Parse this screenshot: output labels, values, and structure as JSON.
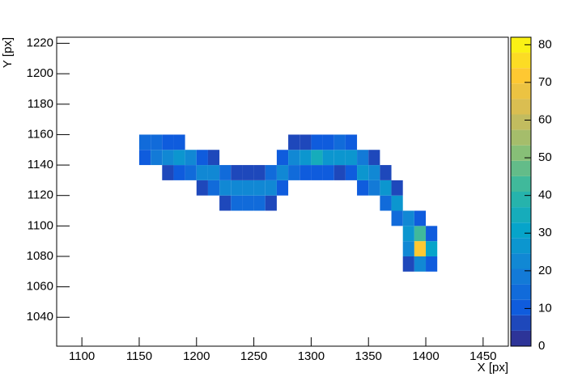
{
  "chart_data": {
    "type": "heatmap",
    "xlabel": "X [px]",
    "ylabel": "Y [px]",
    "xlim": [
      1078,
      1472
    ],
    "ylim": [
      1021,
      1224
    ],
    "zlim": [
      0,
      82
    ],
    "xticks": [
      1100,
      1150,
      1200,
      1250,
      1300,
      1350,
      1400,
      1450
    ],
    "yticks": [
      1040,
      1060,
      1080,
      1100,
      1120,
      1140,
      1160,
      1180,
      1200,
      1220
    ],
    "zticks": [
      0,
      10,
      20,
      30,
      40,
      50,
      60,
      70,
      80
    ],
    "xbin": 10,
    "ybin": 10,
    "contours": 20,
    "palette": [
      "#352a87",
      "#0f5cdd",
      "#1481d6",
      "#06a4ca",
      "#2eb7a4",
      "#87bf77",
      "#d1bb59",
      "#fec832",
      "#f9fb0e"
    ],
    "cells": [
      [
        1150,
        1140,
        12
      ],
      [
        1150,
        1150,
        15
      ],
      [
        1160,
        1140,
        18
      ],
      [
        1160,
        1150,
        14
      ],
      [
        1170,
        1130,
        8
      ],
      [
        1170,
        1140,
        22
      ],
      [
        1170,
        1150,
        12
      ],
      [
        1180,
        1130,
        10
      ],
      [
        1180,
        1140,
        28
      ],
      [
        1180,
        1150,
        10
      ],
      [
        1190,
        1130,
        14
      ],
      [
        1190,
        1140,
        22
      ],
      [
        1200,
        1120,
        8
      ],
      [
        1200,
        1130,
        22
      ],
      [
        1200,
        1140,
        12
      ],
      [
        1210,
        1120,
        14
      ],
      [
        1210,
        1130,
        24
      ],
      [
        1210,
        1140,
        6
      ],
      [
        1220,
        1110,
        8
      ],
      [
        1220,
        1120,
        22
      ],
      [
        1220,
        1130,
        14
      ],
      [
        1230,
        1110,
        14
      ],
      [
        1230,
        1120,
        24
      ],
      [
        1230,
        1130,
        8
      ],
      [
        1240,
        1110,
        16
      ],
      [
        1240,
        1120,
        22
      ],
      [
        1240,
        1130,
        5
      ],
      [
        1250,
        1110,
        14
      ],
      [
        1250,
        1120,
        24
      ],
      [
        1250,
        1130,
        8
      ],
      [
        1260,
        1110,
        8
      ],
      [
        1260,
        1120,
        22
      ],
      [
        1260,
        1130,
        14
      ],
      [
        1270,
        1120,
        10
      ],
      [
        1270,
        1130,
        24
      ],
      [
        1270,
        1140,
        10
      ],
      [
        1280,
        1130,
        16
      ],
      [
        1280,
        1140,
        24
      ],
      [
        1280,
        1150,
        6
      ],
      [
        1290,
        1130,
        12
      ],
      [
        1290,
        1140,
        28
      ],
      [
        1290,
        1150,
        8
      ],
      [
        1300,
        1130,
        10
      ],
      [
        1300,
        1140,
        36
      ],
      [
        1300,
        1150,
        10
      ],
      [
        1310,
        1130,
        10
      ],
      [
        1310,
        1140,
        28
      ],
      [
        1310,
        1150,
        12
      ],
      [
        1320,
        1130,
        8
      ],
      [
        1320,
        1140,
        26
      ],
      [
        1320,
        1150,
        14
      ],
      [
        1330,
        1130,
        10
      ],
      [
        1330,
        1140,
        28
      ],
      [
        1330,
        1150,
        12
      ],
      [
        1340,
        1120,
        10
      ],
      [
        1340,
        1130,
        26
      ],
      [
        1340,
        1140,
        18
      ],
      [
        1350,
        1120,
        20
      ],
      [
        1350,
        1130,
        24
      ],
      [
        1350,
        1140,
        6
      ],
      [
        1360,
        1110,
        14
      ],
      [
        1360,
        1120,
        26
      ],
      [
        1360,
        1130,
        8
      ],
      [
        1370,
        1100,
        16
      ],
      [
        1370,
        1110,
        26
      ],
      [
        1370,
        1120,
        6
      ],
      [
        1380,
        1070,
        8
      ],
      [
        1380,
        1080,
        24
      ],
      [
        1380,
        1090,
        28
      ],
      [
        1380,
        1100,
        22
      ],
      [
        1390,
        1070,
        22
      ],
      [
        1390,
        1080,
        72
      ],
      [
        1390,
        1090,
        44
      ],
      [
        1390,
        1100,
        10
      ],
      [
        1400,
        1070,
        10
      ],
      [
        1400,
        1080,
        30
      ],
      [
        1400,
        1090,
        12
      ]
    ]
  }
}
